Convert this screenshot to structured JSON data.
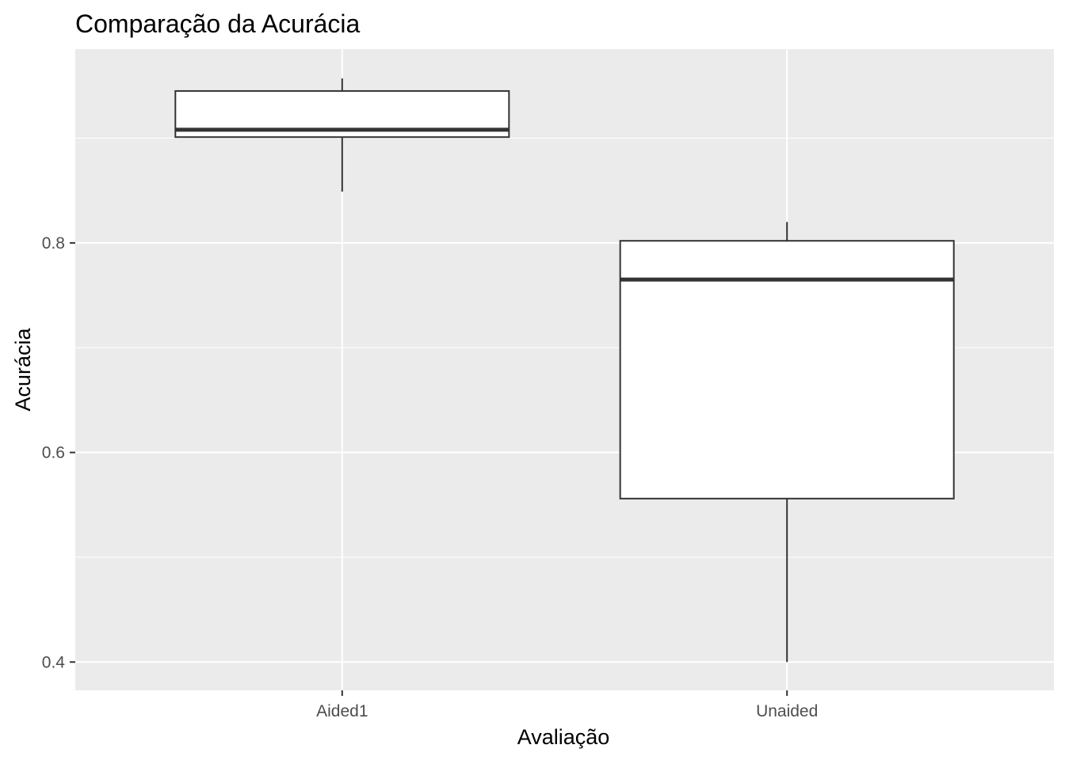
{
  "chart_data": {
    "type": "boxplot",
    "title": "Comparação da Acurácia",
    "xlabel": "Avaliação",
    "ylabel": "Acurácia",
    "categories": [
      "Aided1",
      "Unaided"
    ],
    "boxes": [
      {
        "category": "Aided1",
        "min": 0.849,
        "q1": 0.901,
        "median": 0.908,
        "q3": 0.945,
        "max": 0.957
      },
      {
        "category": "Unaided",
        "min": 0.4,
        "q1": 0.556,
        "median": 0.765,
        "q3": 0.802,
        "max": 0.82
      }
    ],
    "y_ticks": [
      0.4,
      0.6,
      0.8
    ],
    "y_tick_labels": [
      "0.4",
      "0.6",
      "0.8"
    ],
    "ylim": [
      0.373,
      0.985
    ],
    "grid": true,
    "panel_background": "#ebebeb",
    "gridline_color": "#ffffff",
    "box_fill": "#ffffff",
    "box_stroke": "#333333"
  }
}
